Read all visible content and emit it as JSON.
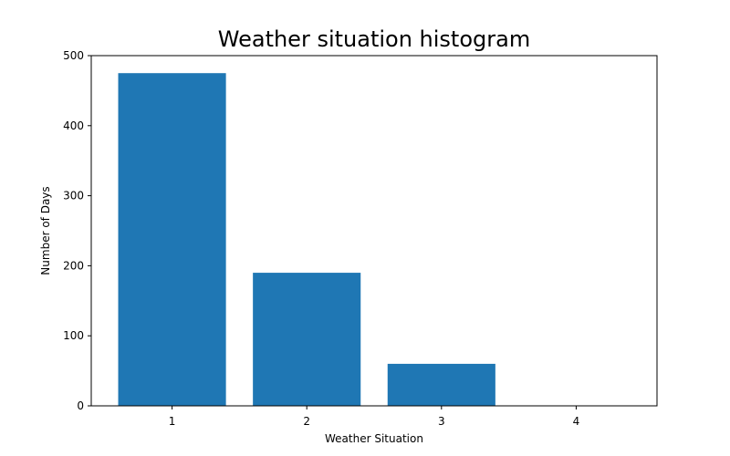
{
  "chart_data": {
    "type": "bar",
    "title": "Weather situation histogram",
    "xlabel": "Weather Situation",
    "ylabel": "Number of Days",
    "categories": [
      "1",
      "2",
      "3",
      "4"
    ],
    "values": [
      475,
      190,
      60,
      0
    ],
    "ylim": [
      0,
      500
    ],
    "yticks": [
      "0",
      "100",
      "200",
      "300",
      "400",
      "500"
    ],
    "grid": false,
    "legend": "none",
    "bar_color": "#1f77b4"
  }
}
